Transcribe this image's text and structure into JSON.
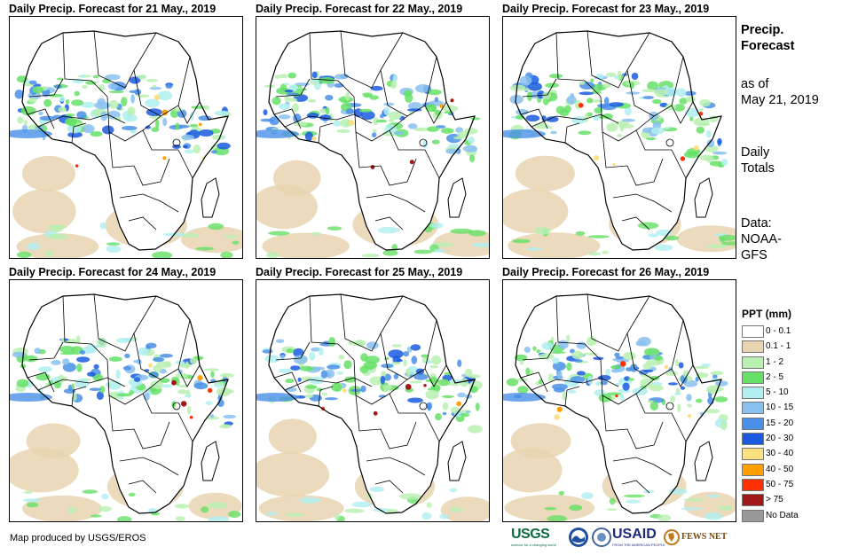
{
  "panels": [
    {
      "title": "Daily Precip. Forecast for 21 May., 2019"
    },
    {
      "title": "Daily Precip. Forecast for 22 May., 2019"
    },
    {
      "title": "Daily Precip. Forecast for 23 May., 2019"
    },
    {
      "title": "Daily Precip. Forecast for 24 May., 2019"
    },
    {
      "title": "Daily Precip. Forecast for 25 May., 2019"
    },
    {
      "title": "Daily Precip. Forecast for 26 May., 2019"
    }
  ],
  "info": {
    "title_line1": "Precip.",
    "title_line2": "Forecast",
    "asof_line1": "as of",
    "asof_line2": "May 21, 2019",
    "totals_line1": "Daily",
    "totals_line2": "Totals",
    "data_line1": "Data:",
    "data_line2": "NOAA-",
    "data_line3": "GFS"
  },
  "legend": {
    "title": "PPT (mm)",
    "items": [
      {
        "label": "0 - 0.1",
        "color": "#ffffff"
      },
      {
        "label": "0.1 - 1",
        "color": "#e8d4b0"
      },
      {
        "label": "1 - 2",
        "color": "#b8f0b0"
      },
      {
        "label": "2 - 5",
        "color": "#66e066"
      },
      {
        "label": "5 - 10",
        "color": "#b0eef0"
      },
      {
        "label": "10 - 15",
        "color": "#88c0f0"
      },
      {
        "label": "15 - 20",
        "color": "#4a90e8"
      },
      {
        "label": "20 - 30",
        "color": "#1a5ae0"
      },
      {
        "label": "30 - 40",
        "color": "#ffe080"
      },
      {
        "label": "40 - 50",
        "color": "#ffa000"
      },
      {
        "label": "50 - 75",
        "color": "#ff3000"
      },
      {
        "label": "> 75",
        "color": "#a01818"
      },
      {
        "label": "No Data",
        "color": "#999999"
      }
    ]
  },
  "credit": "Map produced by USGS/EROS",
  "logos": {
    "usgs": "USGS",
    "usgs_tagline": "science for a changing world",
    "usaid": "USAID",
    "usaid_tagline": "FROM THE AMERICAN PEOPLE",
    "fews": "FEWS NET"
  }
}
